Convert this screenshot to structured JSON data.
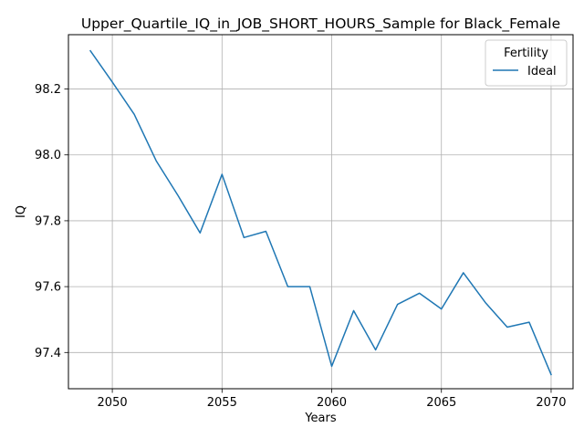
{
  "chart_data": {
    "type": "line",
    "title": "Upper_Quartile_IQ_in_JOB_SHORT_HOURS_Sample for Black_Female",
    "xlabel": "Years",
    "ylabel": "IQ",
    "xlim": [
      2048,
      2071
    ],
    "ylim": [
      97.29,
      98.365
    ],
    "xticks": [
      2050,
      2055,
      2060,
      2065,
      2070
    ],
    "yticks": [
      97.4,
      97.6,
      97.8,
      98.0,
      98.2
    ],
    "ytick_labels": [
      "97.4",
      "97.6",
      "97.8",
      "98.0",
      "98.2"
    ],
    "grid": true,
    "legend": {
      "title": "Fertility",
      "placement": "top-right"
    },
    "series": [
      {
        "name": "Ideal",
        "color": "#1f77b4",
        "x": [
          2049,
          2050,
          2051,
          2052,
          2053,
          2054,
          2055,
          2056,
          2057,
          2058,
          2059,
          2060,
          2061,
          2062,
          2063,
          2064,
          2065,
          2066,
          2067,
          2068,
          2069,
          2070
        ],
        "y": [
          98.316,
          98.221,
          98.123,
          97.982,
          97.876,
          97.763,
          97.941,
          97.749,
          97.768,
          97.6,
          97.6,
          97.358,
          97.527,
          97.408,
          97.546,
          97.58,
          97.532,
          97.642,
          97.552,
          97.477,
          97.492,
          97.333
        ]
      }
    ]
  }
}
